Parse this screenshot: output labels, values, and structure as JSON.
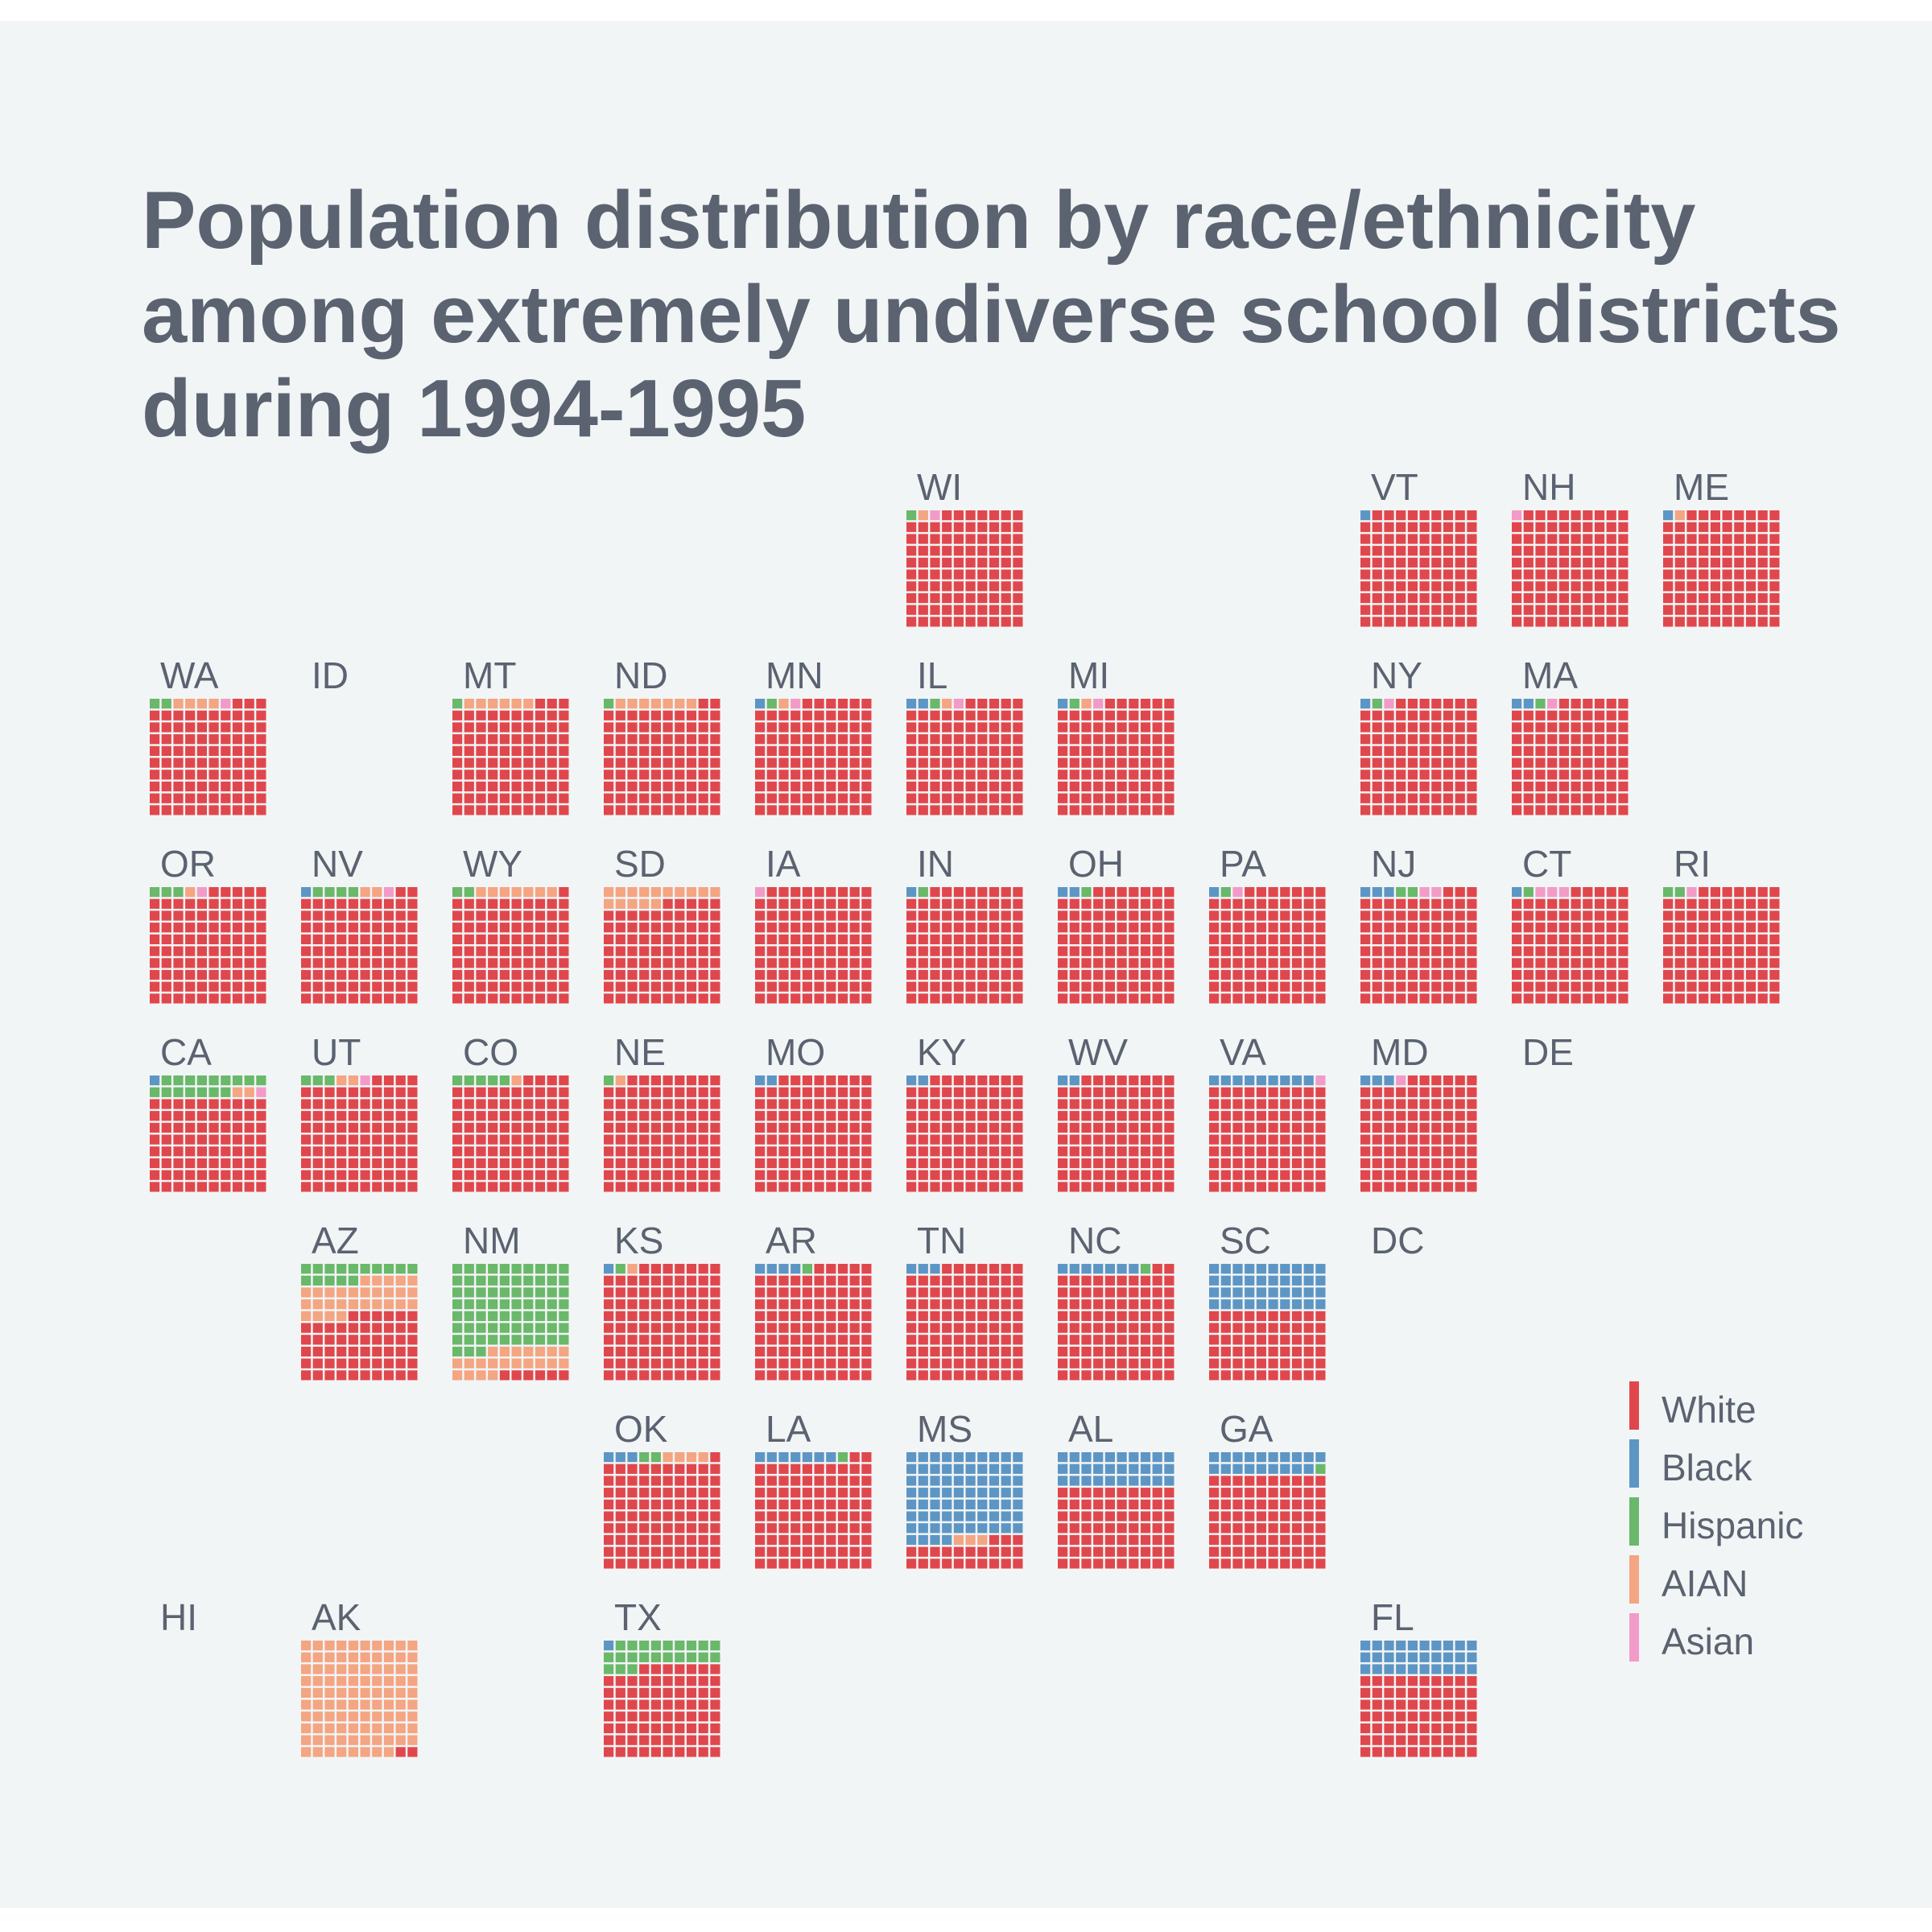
{
  "chart_data": {
    "type": "waffle-tile-map",
    "title": "Population distribution by race/ethnicity among extremely undiverse school districts during 1994-1995",
    "title_lines": [
      "Population distribution by race/ethnicity",
      "among extremely undiverse school districts",
      "during 1994-1995"
    ],
    "categories": [
      "White",
      "Black",
      "Hispanic",
      "AIAN",
      "Asian"
    ],
    "colors": {
      "White": "#e0474c",
      "Black": "#5d96c4",
      "Hispanic": "#6ab86a",
      "AIAN": "#f4a582",
      "Asian": "#f29bc8"
    },
    "unit": "percent of population per state (100 squares)",
    "legend": {
      "position": "bottom-right",
      "entries": [
        "White",
        "Black",
        "Hispanic",
        "AIAN",
        "Asian"
      ]
    },
    "states": [
      {
        "abbr": "WI",
        "row": 0,
        "col": 5,
        "values": {
          "White": 96,
          "Black": 0,
          "Hispanic": 1,
          "AIAN": 1,
          "Asian": 1
        }
      },
      {
        "abbr": "VT",
        "row": 0,
        "col": 8,
        "values": {
          "White": 99,
          "Black": 1,
          "Hispanic": 0,
          "AIAN": 0,
          "Asian": 0
        }
      },
      {
        "abbr": "NH",
        "row": 0,
        "col": 9,
        "values": {
          "White": 99,
          "Black": 0,
          "Hispanic": 0,
          "AIAN": 0,
          "Asian": 1
        }
      },
      {
        "abbr": "ME",
        "row": 0,
        "col": 10,
        "values": {
          "White": 98,
          "Black": 1,
          "Hispanic": 0,
          "AIAN": 1,
          "Asian": 0
        }
      },
      {
        "abbr": "WA",
        "row": 1,
        "col": 0,
        "values": {
          "White": 93,
          "Black": 0,
          "Hispanic": 2,
          "AIAN": 4,
          "Asian": 1
        }
      },
      {
        "abbr": "ID",
        "row": 1,
        "col": 1,
        "values": null
      },
      {
        "abbr": "MT",
        "row": 1,
        "col": 2,
        "values": {
          "White": 93,
          "Black": 0,
          "Hispanic": 1,
          "AIAN": 6,
          "Asian": 0
        }
      },
      {
        "abbr": "ND",
        "row": 1,
        "col": 3,
        "values": {
          "White": 92,
          "Black": 0,
          "Hispanic": 1,
          "AIAN": 7,
          "Asian": 0
        }
      },
      {
        "abbr": "MN",
        "row": 1,
        "col": 4,
        "values": {
          "White": 96,
          "Black": 1,
          "Hispanic": 1,
          "AIAN": 1,
          "Asian": 1
        }
      },
      {
        "abbr": "IL",
        "row": 1,
        "col": 5,
        "values": {
          "White": 95,
          "Black": 2,
          "Hispanic": 1,
          "AIAN": 1,
          "Asian": 1
        }
      },
      {
        "abbr": "MI",
        "row": 1,
        "col": 6,
        "values": {
          "White": 96,
          "Black": 1,
          "Hispanic": 1,
          "AIAN": 1,
          "Asian": 1
        }
      },
      {
        "abbr": "NY",
        "row": 1,
        "col": 8,
        "values": {
          "White": 97,
          "Black": 1,
          "Hispanic": 1,
          "AIAN": 0,
          "Asian": 1
        }
      },
      {
        "abbr": "MA",
        "row": 1,
        "col": 9,
        "values": {
          "White": 96,
          "Black": 2,
          "Hispanic": 1,
          "AIAN": 0,
          "Asian": 1
        }
      },
      {
        "abbr": "OR",
        "row": 2,
        "col": 0,
        "values": {
          "White": 95,
          "Black": 0,
          "Hispanic": 3,
          "AIAN": 1,
          "Asian": 1
        }
      },
      {
        "abbr": "NV",
        "row": 2,
        "col": 1,
        "values": {
          "White": 92,
          "Black": 1,
          "Hispanic": 4,
          "AIAN": 2,
          "Asian": 1
        }
      },
      {
        "abbr": "WY",
        "row": 2,
        "col": 2,
        "values": {
          "White": 91,
          "Black": 0,
          "Hispanic": 2,
          "AIAN": 7,
          "Asian": 0
        }
      },
      {
        "abbr": "SD",
        "row": 2,
        "col": 3,
        "values": {
          "White": 85,
          "Black": 0,
          "Hispanic": 0,
          "AIAN": 15,
          "Asian": 0
        }
      },
      {
        "abbr": "IA",
        "row": 2,
        "col": 4,
        "values": {
          "White": 99,
          "Black": 0,
          "Hispanic": 0,
          "AIAN": 0,
          "Asian": 1
        }
      },
      {
        "abbr": "IN",
        "row": 2,
        "col": 5,
        "values": {
          "White": 98,
          "Black": 1,
          "Hispanic": 1,
          "AIAN": 0,
          "Asian": 0
        }
      },
      {
        "abbr": "OH",
        "row": 2,
        "col": 6,
        "values": {
          "White": 97,
          "Black": 2,
          "Hispanic": 1,
          "AIAN": 0,
          "Asian": 0
        }
      },
      {
        "abbr": "PA",
        "row": 2,
        "col": 7,
        "values": {
          "White": 97,
          "Black": 1,
          "Hispanic": 1,
          "AIAN": 0,
          "Asian": 1
        }
      },
      {
        "abbr": "NJ",
        "row": 2,
        "col": 8,
        "values": {
          "White": 93,
          "Black": 3,
          "Hispanic": 2,
          "AIAN": 0,
          "Asian": 2
        }
      },
      {
        "abbr": "CT",
        "row": 2,
        "col": 9,
        "values": {
          "White": 95,
          "Black": 1,
          "Hispanic": 1,
          "AIAN": 0,
          "Asian": 3
        }
      },
      {
        "abbr": "RI",
        "row": 2,
        "col": 10,
        "values": {
          "White": 97,
          "Black": 0,
          "Hispanic": 2,
          "AIAN": 0,
          "Asian": 1
        }
      },
      {
        "abbr": "CA",
        "row": 3,
        "col": 0,
        "values": {
          "White": 80,
          "Black": 1,
          "Hispanic": 16,
          "AIAN": 2,
          "Asian": 1
        }
      },
      {
        "abbr": "UT",
        "row": 3,
        "col": 1,
        "values": {
          "White": 94,
          "Black": 0,
          "Hispanic": 3,
          "AIAN": 2,
          "Asian": 1
        }
      },
      {
        "abbr": "CO",
        "row": 3,
        "col": 2,
        "values": {
          "White": 94,
          "Black": 0,
          "Hispanic": 5,
          "AIAN": 1,
          "Asian": 0
        }
      },
      {
        "abbr": "NE",
        "row": 3,
        "col": 3,
        "values": {
          "White": 98,
          "Black": 0,
          "Hispanic": 1,
          "AIAN": 1,
          "Asian": 0
        }
      },
      {
        "abbr": "MO",
        "row": 3,
        "col": 4,
        "values": {
          "White": 98,
          "Black": 2,
          "Hispanic": 0,
          "AIAN": 0,
          "Asian": 0
        }
      },
      {
        "abbr": "KY",
        "row": 3,
        "col": 5,
        "values": {
          "White": 98,
          "Black": 2,
          "Hispanic": 0,
          "AIAN": 0,
          "Asian": 0
        }
      },
      {
        "abbr": "WV",
        "row": 3,
        "col": 6,
        "values": {
          "White": 98,
          "Black": 2,
          "Hispanic": 0,
          "AIAN": 0,
          "Asian": 0
        }
      },
      {
        "abbr": "VA",
        "row": 3,
        "col": 7,
        "values": {
          "White": 90,
          "Black": 9,
          "Hispanic": 0,
          "AIAN": 0,
          "Asian": 1
        }
      },
      {
        "abbr": "MD",
        "row": 3,
        "col": 8,
        "values": {
          "White": 96,
          "Black": 3,
          "Hispanic": 0,
          "AIAN": 0,
          "Asian": 1
        }
      },
      {
        "abbr": "DE",
        "row": 3,
        "col": 9,
        "values": null
      },
      {
        "abbr": "AZ",
        "row": 4,
        "col": 1,
        "values": {
          "White": 56,
          "Black": 0,
          "Hispanic": 15,
          "AIAN": 29,
          "Asian": 0
        }
      },
      {
        "abbr": "NM",
        "row": 4,
        "col": 2,
        "values": {
          "White": 6,
          "Black": 0,
          "Hispanic": 73,
          "AIAN": 21,
          "Asian": 0
        }
      },
      {
        "abbr": "KS",
        "row": 4,
        "col": 3,
        "values": {
          "White": 97,
          "Black": 1,
          "Hispanic": 1,
          "AIAN": 1,
          "Asian": 0
        }
      },
      {
        "abbr": "AR",
        "row": 4,
        "col": 4,
        "values": {
          "White": 95,
          "Black": 4,
          "Hispanic": 1,
          "AIAN": 0,
          "Asian": 0
        }
      },
      {
        "abbr": "TN",
        "row": 4,
        "col": 5,
        "values": {
          "White": 97,
          "Black": 3,
          "Hispanic": 0,
          "AIAN": 0,
          "Asian": 0
        }
      },
      {
        "abbr": "NC",
        "row": 4,
        "col": 6,
        "values": {
          "White": 92,
          "Black": 7,
          "Hispanic": 1,
          "AIAN": 0,
          "Asian": 0
        }
      },
      {
        "abbr": "SC",
        "row": 4,
        "col": 7,
        "values": {
          "White": 60,
          "Black": 40,
          "Hispanic": 0,
          "AIAN": 0,
          "Asian": 0
        }
      },
      {
        "abbr": "DC",
        "row": 4,
        "col": 8,
        "values": null
      },
      {
        "abbr": "OK",
        "row": 5,
        "col": 3,
        "values": {
          "White": 91,
          "Black": 3,
          "Hispanic": 2,
          "AIAN": 4,
          "Asian": 0
        }
      },
      {
        "abbr": "LA",
        "row": 5,
        "col": 4,
        "values": {
          "White": 92,
          "Black": 7,
          "Hispanic": 1,
          "AIAN": 0,
          "Asian": 0
        }
      },
      {
        "abbr": "MS",
        "row": 5,
        "col": 5,
        "values": {
          "White": 23,
          "Black": 74,
          "Hispanic": 0,
          "AIAN": 3,
          "Asian": 0
        }
      },
      {
        "abbr": "AL",
        "row": 5,
        "col": 6,
        "values": {
          "White": 70,
          "Black": 30,
          "Hispanic": 0,
          "AIAN": 0,
          "Asian": 0
        }
      },
      {
        "abbr": "GA",
        "row": 5,
        "col": 7,
        "values": {
          "White": 80,
          "Black": 19,
          "Hispanic": 1,
          "AIAN": 0,
          "Asian": 0
        }
      },
      {
        "abbr": "HI",
        "row": 6,
        "col": 0,
        "values": null
      },
      {
        "abbr": "AK",
        "row": 6,
        "col": 1,
        "values": {
          "White": 2,
          "Black": 0,
          "Hispanic": 0,
          "AIAN": 98,
          "Asian": 0
        }
      },
      {
        "abbr": "TX",
        "row": 6,
        "col": 3,
        "values": {
          "White": 77,
          "Black": 1,
          "Hispanic": 22,
          "AIAN": 0,
          "Asian": 0
        }
      },
      {
        "abbr": "FL",
        "row": 6,
        "col": 8,
        "values": {
          "White": 70,
          "Black": 30,
          "Hispanic": 0,
          "AIAN": 0,
          "Asian": 0
        }
      }
    ]
  }
}
